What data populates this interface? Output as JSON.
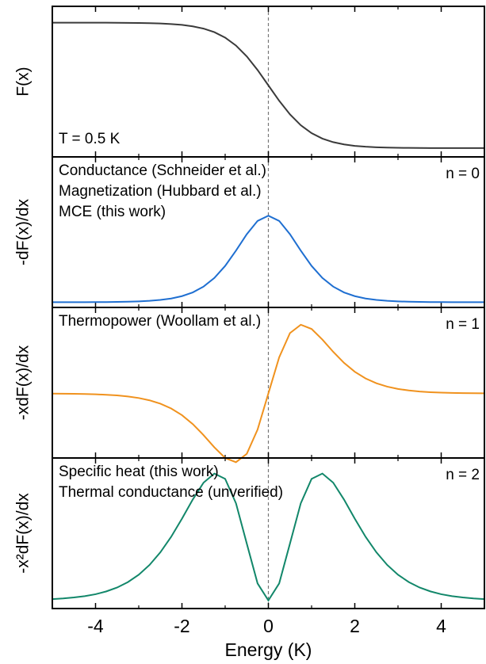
{
  "chart_data": [
    {
      "type": "line",
      "ylabel": "F(x)",
      "color": "#3a3a3a",
      "ylim": [
        -0.07,
        1.13
      ],
      "annotations": [
        "T = 0.5 K"
      ],
      "annotation_color": "#000000",
      "annotation_corner": "lower left",
      "vline": 0,
      "xlim": [
        -5,
        5
      ],
      "x": [
        -5,
        -4.75,
        -4.5,
        -4.25,
        -4,
        -3.75,
        -3.5,
        -3.25,
        -3,
        -2.75,
        -2.5,
        -2.25,
        -2,
        -1.75,
        -1.5,
        -1.25,
        -1,
        -0.75,
        -0.5,
        -0.25,
        0,
        0.25,
        0.5,
        0.75,
        1,
        1.25,
        1.5,
        1.75,
        2,
        2.25,
        2.5,
        2.75,
        3,
        3.25,
        3.5,
        3.75,
        4,
        4.25,
        4.5,
        4.75,
        5
      ],
      "values": [
        1,
        0.9999,
        0.9999,
        0.9998,
        0.9997,
        0.9994,
        0.9991,
        0.9985,
        0.9975,
        0.9959,
        0.9933,
        0.989,
        0.982,
        0.9707,
        0.9526,
        0.9241,
        0.8808,
        0.8176,
        0.7311,
        0.6225,
        0.5,
        0.3775,
        0.2689,
        0.1824,
        0.1192,
        0.0759,
        0.0474,
        0.0293,
        0.018,
        0.011,
        0.0067,
        0.0041,
        0.0025,
        0.0015,
        0.0009,
        0.0006,
        0.0003,
        0.0002,
        0.0001,
        0.0001,
        0
      ]
    },
    {
      "type": "line",
      "ylabel": "-dF(x)/dx",
      "color": "#1f6fd1",
      "ylim": [
        -0.03,
        0.84
      ],
      "annotations": [
        "Conductance (Schneider et al.)",
        "Magnetization (Hubbard et al.)",
        "MCE (this work)"
      ],
      "annotation_color": "#1f6fd1",
      "annotation_corner": "upper left",
      "n_label": "n = 0",
      "vline": 0,
      "xlim": [
        -5,
        5
      ],
      "x": [
        -5,
        -4.75,
        -4.5,
        -4.25,
        -4,
        -3.75,
        -3.5,
        -3.25,
        -3,
        -2.75,
        -2.5,
        -2.25,
        -2,
        -1.75,
        -1.5,
        -1.25,
        -1,
        -0.75,
        -0.5,
        -0.25,
        0,
        0.25,
        0.5,
        0.75,
        1,
        1.25,
        1.5,
        1.75,
        2,
        2.25,
        2.5,
        2.75,
        3,
        3.25,
        3.5,
        3.75,
        4,
        4.25,
        4.5,
        4.75,
        5
      ],
      "values": [
        0.0001,
        0.0002,
        0.0002,
        0.0004,
        0.0007,
        0.0011,
        0.0018,
        0.003,
        0.0049,
        0.0081,
        0.0133,
        0.0217,
        0.0353,
        0.0569,
        0.0904,
        0.1402,
        0.21,
        0.2983,
        0.3932,
        0.47,
        0.5,
        0.47,
        0.3932,
        0.2983,
        0.21,
        0.1402,
        0.0904,
        0.0569,
        0.0353,
        0.0217,
        0.0133,
        0.0081,
        0.0049,
        0.003,
        0.0018,
        0.0011,
        0.0007,
        0.0004,
        0.0002,
        0.0002,
        0.0001
      ]
    },
    {
      "type": "line",
      "ylabel": "-xdF(x)/dx",
      "color": "#f0921e",
      "ylim": [
        -0.21,
        0.28
      ],
      "annotations": [
        "Thermopower (Woollam et al.)"
      ],
      "annotation_color": "#f0921e",
      "annotation_corner": "upper left",
      "n_label": "n = 1",
      "vline": 0,
      "xlim": [
        -5,
        5
      ],
      "x": [
        -5,
        -4.75,
        -4.5,
        -4.25,
        -4,
        -3.75,
        -3.5,
        -3.25,
        -3,
        -2.75,
        -2.5,
        -2.25,
        -2,
        -1.75,
        -1.5,
        -1.25,
        -1,
        -0.75,
        -0.5,
        -0.25,
        0,
        0.25,
        0.5,
        0.75,
        1,
        1.25,
        1.5,
        1.75,
        2,
        2.25,
        2.5,
        2.75,
        3,
        3.25,
        3.5,
        3.75,
        4,
        4.25,
        4.5,
        4.75,
        5
      ],
      "values": [
        -0.0005,
        -0.0007,
        -0.0011,
        -0.0017,
        -0.0027,
        -0.0042,
        -0.0064,
        -0.0098,
        -0.0148,
        -0.0223,
        -0.0333,
        -0.0488,
        -0.0706,
        -0.0996,
        -0.1356,
        -0.1753,
        -0.21,
        -0.2237,
        -0.1966,
        -0.1175,
        0,
        0.1175,
        0.1966,
        0.2237,
        0.21,
        0.1753,
        0.1356,
        0.0996,
        0.0706,
        0.0488,
        0.0333,
        0.0223,
        0.0148,
        0.0098,
        0.0064,
        0.0042,
        0.0027,
        0.0017,
        0.0011,
        0.0007,
        0.0005
      ]
    },
    {
      "type": "line",
      "ylabel": "-x²dF(x)/dx",
      "xlabel": "Energy (K)",
      "color": "#12876a",
      "ylim": [
        -0.014,
        0.246
      ],
      "annotations": [
        "Specific heat (this work)",
        "Thermal conductance (unverified)"
      ],
      "annotation_color": "#12876a",
      "annotation_corner": "upper left",
      "n_label": "n = 2",
      "vline": 0,
      "xlim": [
        -5,
        5
      ],
      "xticks": [
        -4,
        -2,
        0,
        2,
        4
      ],
      "xminorticks": [
        -5,
        -3,
        -1,
        1,
        3,
        5
      ],
      "x": [
        -5,
        -4.75,
        -4.5,
        -4.25,
        -4,
        -3.75,
        -3.5,
        -3.25,
        -3,
        -2.75,
        -2.5,
        -2.25,
        -2,
        -1.75,
        -1.5,
        -1.25,
        -1,
        -0.75,
        -0.5,
        -0.25,
        0,
        0.25,
        0.5,
        0.75,
        1,
        1.25,
        1.5,
        1.75,
        2,
        2.25,
        2.5,
        2.75,
        3,
        3.25,
        3.5,
        3.75,
        4,
        4.25,
        4.5,
        4.75,
        5
      ],
      "values": [
        0.0023,
        0.0034,
        0.0051,
        0.0074,
        0.0107,
        0.0156,
        0.0223,
        0.0317,
        0.0444,
        0.0613,
        0.0831,
        0.1099,
        0.1412,
        0.1743,
        0.2034,
        0.2191,
        0.21,
        0.1678,
        0.0983,
        0.0294,
        0,
        0.0294,
        0.0983,
        0.1678,
        0.21,
        0.2191,
        0.2034,
        0.1743,
        0.1412,
        0.1099,
        0.0831,
        0.0613,
        0.0444,
        0.0317,
        0.0223,
        0.0156,
        0.0107,
        0.0074,
        0.0051,
        0.0034,
        0.0023
      ]
    }
  ]
}
